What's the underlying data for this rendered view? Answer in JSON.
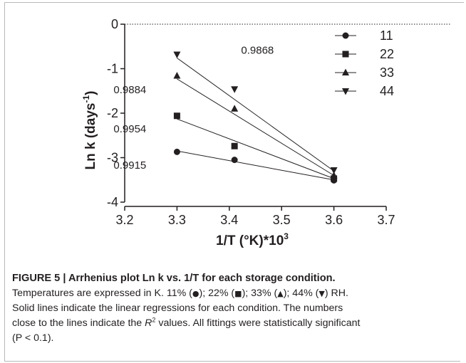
{
  "chart_data": {
    "type": "scatter",
    "xlabel": "1/T (°K)*10",
    "xlabel_sup": "3",
    "ylabel": "Ln k (days",
    "ylabel_sup": "-1",
    "xlim": [
      3.2,
      3.7
    ],
    "ylim": [
      -4,
      0
    ],
    "x_ticks": [
      "3.2",
      "3.3",
      "3.4",
      "3.5",
      "3.6",
      "3.7"
    ],
    "y_ticks": [
      "0",
      "-1",
      "-2",
      "-3",
      "-4"
    ],
    "grid": false,
    "zero_line": "dotted",
    "legend_position": "top-right",
    "series": [
      {
        "name": "11",
        "marker": "circle",
        "points": [
          {
            "x": 3.3,
            "y": -2.87
          },
          {
            "x": 3.41,
            "y": -3.05
          },
          {
            "x": 3.6,
            "y": -3.51
          }
        ],
        "fit_line": {
          "x": [
            3.3,
            3.6
          ],
          "y": [
            -2.85,
            -3.5
          ]
        },
        "r2": "0.9915"
      },
      {
        "name": "22",
        "marker": "square",
        "points": [
          {
            "x": 3.3,
            "y": -2.06
          },
          {
            "x": 3.41,
            "y": -2.74
          },
          {
            "x": 3.6,
            "y": -3.47
          }
        ],
        "fit_line": {
          "x": [
            3.3,
            3.6
          ],
          "y": [
            -2.13,
            -3.47
          ]
        },
        "r2": "0.9954"
      },
      {
        "name": "33",
        "marker": "triangle-up",
        "points": [
          {
            "x": 3.3,
            "y": -1.16
          },
          {
            "x": 3.41,
            "y": -1.9
          },
          {
            "x": 3.6,
            "y": -3.4
          }
        ],
        "fit_line": {
          "x": [
            3.3,
            3.6
          ],
          "y": [
            -1.23,
            -3.4
          ]
        },
        "r2": "0.9884"
      },
      {
        "name": "44",
        "marker": "triangle-down",
        "points": [
          {
            "x": 3.3,
            "y": -0.68
          },
          {
            "x": 3.41,
            "y": -1.46
          },
          {
            "x": 3.6,
            "y": -3.28
          }
        ],
        "fit_line": {
          "x": [
            3.3,
            3.6
          ],
          "y": [
            -0.76,
            -3.3
          ]
        },
        "r2": "0.9868"
      }
    ]
  },
  "caption": {
    "title": "FIGURE 5 | Arrhenius plot Ln k vs. 1/T for each storage condition.",
    "line1_a": "Temperatures are expressed in K. 11% (",
    "sym_circle": "●",
    "line1_b": "); 22% (",
    "sym_square": "■",
    "line1_c": "); 33% (",
    "sym_up": "▲",
    "line1_d": "); 44% (",
    "sym_down": "▼",
    "line1_e": ") RH.",
    "line2": "Solid lines indicate the linear regressions for each condition. The numbers",
    "line3_a": "close to the lines indicate the ",
    "r_letter": "R",
    "r_sup": "2",
    "line3_b": " values. All fittings were statistically significant",
    "line4": "(P < 0.1)."
  }
}
